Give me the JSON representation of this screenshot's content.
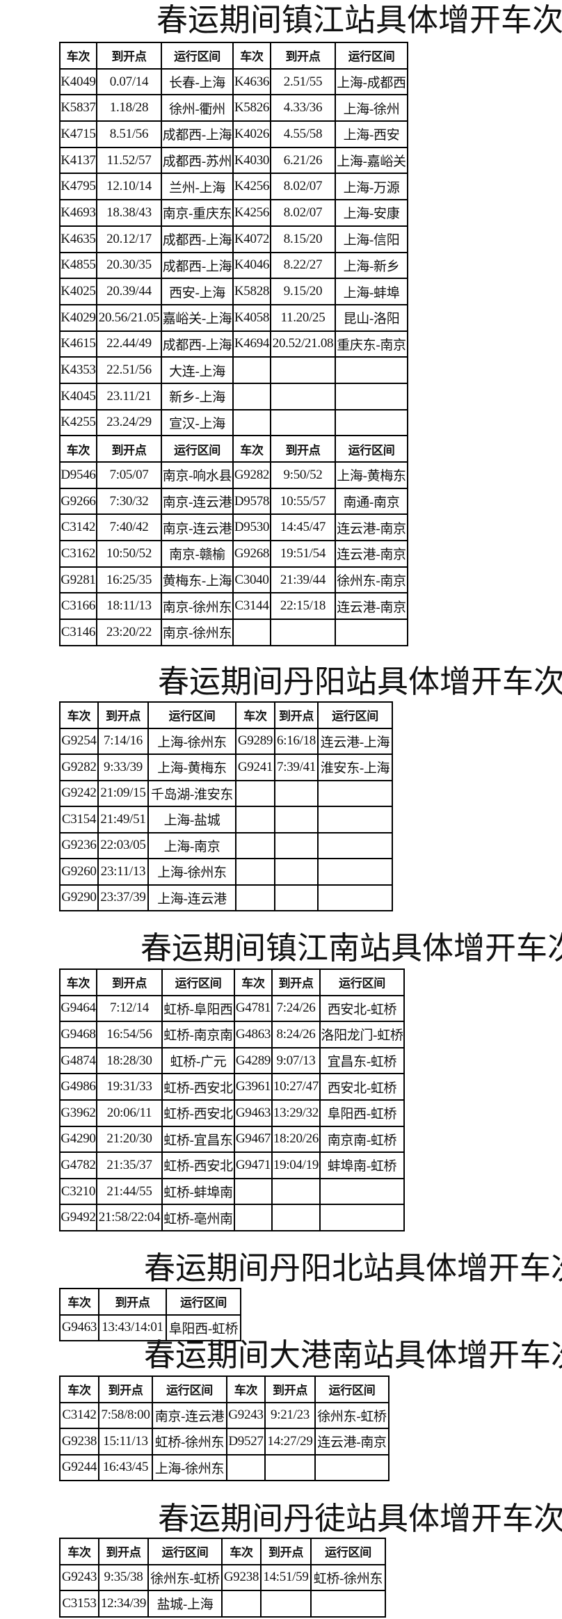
{
  "sections": [
    {
      "title": "春运期间镇江站具体增开车次",
      "blocks": [
        {
          "headers": [
            "车次",
            "到开点",
            "运行区间",
            "车次",
            "到开点",
            "运行区间"
          ],
          "rows": [
            [
              "K4049",
              "0.07/14",
              "长春-上海",
              "K4636",
              "2.51/55",
              "上海-成都西"
            ],
            [
              "K5837",
              "1.18/28",
              "徐州-衢州",
              "K5826",
              "4.33/36",
              "上海-徐州"
            ],
            [
              "K4715",
              "8.51/56",
              "成都西-上海",
              "K4026",
              "4.55/58",
              "上海-西安"
            ],
            [
              "K4137",
              "11.52/57",
              "成都西-苏州",
              "K4030",
              "6.21/26",
              "上海-嘉峪关"
            ],
            [
              "K4795",
              "12.10/14",
              "兰州-上海",
              "K4256",
              "8.02/07",
              "上海-万源"
            ],
            [
              "K4693",
              "18.38/43",
              "南京-重庆东",
              "K4256",
              "8.02/07",
              "上海-安康"
            ],
            [
              "K4635",
              "20.12/17",
              "成都西-上海",
              "K4072",
              "8.15/20",
              "上海-信阳"
            ],
            [
              "K4855",
              "20.30/35",
              "成都西-上海",
              "K4046",
              "8.22/27",
              "上海-新乡"
            ],
            [
              "K4025",
              "20.39/44",
              "西安-上海",
              "K5828",
              "9.15/20",
              "上海-蚌埠"
            ],
            [
              "K4029",
              "20.56/21.05",
              "嘉峪关-上海",
              "K4058",
              "11.20/25",
              "昆山-洛阳"
            ],
            [
              "K4615",
              "22.44/49",
              "成都西-上海",
              "K4694",
              "20.52/21.08",
              "重庆东-南京"
            ],
            [
              "K4353",
              "22.51/56",
              "大连-上海",
              "",
              "",
              ""
            ],
            [
              "K4045",
              "23.11/21",
              "新乡-上海",
              "",
              "",
              ""
            ],
            [
              "K4255",
              "23.24/29",
              "宣汉-上海",
              "",
              "",
              ""
            ]
          ]
        },
        {
          "headers": [
            "车次",
            "到开点",
            "运行区间",
            "车次",
            "到开点",
            "运行区间"
          ],
          "rows": [
            [
              "D9546",
              "7:05/07",
              "南京-响水县",
              "G9282",
              "9:50/52",
              "上海-黄梅东"
            ],
            [
              "G9266",
              "7:30/32",
              "南京-连云港",
              "D9578",
              "10:55/57",
              "南通-南京"
            ],
            [
              "C3142",
              "7:40/42",
              "南京-连云港",
              "D9530",
              "14:45/47",
              "连云港-南京"
            ],
            [
              "C3162",
              "10:50/52",
              "南京-赣榆",
              "G9268",
              "19:51/54",
              "连云港-南京"
            ],
            [
              "G9281",
              "16:25/35",
              "黄梅东-上海",
              "C3040",
              "21:39/44",
              "徐州东-南京"
            ],
            [
              "C3166",
              "18:11/13",
              "南京-徐州东",
              "C3144",
              "22:15/18",
              "连云港-南京"
            ],
            [
              "C3146",
              "23:20/22",
              "南京-徐州东",
              "",
              "",
              ""
            ]
          ]
        }
      ]
    },
    {
      "title": "春运期间丹阳站具体增开车次",
      "blocks": [
        {
          "headers": [
            "车次",
            "到开点",
            "运行区间",
            "车次",
            "到开点",
            "运行区间"
          ],
          "rows": [
            [
              "G9254",
              "7:14/16",
              "上海-徐州东",
              "G9289",
              "6:16/18",
              "连云港-上海"
            ],
            [
              "G9282",
              "9:33/39",
              "上海-黄梅东",
              "G9241",
              "7:39/41",
              "淮安东-上海"
            ],
            [
              "G9242",
              "21:09/15",
              "千岛湖-淮安东",
              "",
              "",
              ""
            ],
            [
              "C3154",
              "21:49/51",
              "上海-盐城",
              "",
              "",
              ""
            ],
            [
              "G9236",
              "22:03/05",
              "上海-南京",
              "",
              "",
              ""
            ],
            [
              "G9260",
              "23:11/13",
              "上海-徐州东",
              "",
              "",
              ""
            ],
            [
              "G9290",
              "23:37/39",
              "上海-连云港",
              "",
              "",
              ""
            ]
          ]
        }
      ]
    },
    {
      "title": "春运期间镇江南站具体增开车次",
      "blocks": [
        {
          "headers": [
            "车次",
            "到开点",
            "运行区间",
            "车次",
            "到开点",
            "运行区间"
          ],
          "rows": [
            [
              "G9464",
              "7:12/14",
              "虹桥-阜阳西",
              "G4781",
              "7:24/26",
              "西安北-虹桥"
            ],
            [
              "G9468",
              "16:54/56",
              "虹桥-南京南",
              "G4863",
              "8:24/26",
              "洛阳龙门-虹桥"
            ],
            [
              "G4874",
              "18:28/30",
              "虹桥-广元",
              "G4289",
              "9:07/13",
              "宜昌东-虹桥"
            ],
            [
              "G4986",
              "19:31/33",
              "虹桥-西安北",
              "G3961",
              "10:27/47",
              "西安北-虹桥"
            ],
            [
              "G3962",
              "20:06/11",
              "虹桥-西安北",
              "G9463",
              "13:29/32",
              "阜阳西-虹桥"
            ],
            [
              "G4290",
              "21:20/30",
              "虹桥-宜昌东",
              "G9467",
              "18:20/26",
              "南京南-虹桥"
            ],
            [
              "G4782",
              "21:35/37",
              "虹桥-西安北",
              "G9471",
              "19:04/19",
              "蚌埠南-虹桥"
            ],
            [
              "C3210",
              "21:44/55",
              "虹桥-蚌埠南",
              "",
              "",
              ""
            ],
            [
              "G9492",
              "21:58/22:04",
              "虹桥-亳州南",
              "",
              "",
              ""
            ]
          ]
        }
      ]
    },
    {
      "title": "春运期间丹阳北站具体增开车次",
      "blocks": [
        {
          "headers": [
            "车次",
            "到开点",
            "运行区间"
          ],
          "rows": [
            [
              "G9463",
              "13:43/14:01",
              "阜阳西-虹桥"
            ]
          ]
        }
      ]
    },
    {
      "title": "春运期间大港南站具体增开车次",
      "blocks": [
        {
          "headers": [
            "车次",
            "到开点",
            "运行区间",
            "车次",
            "到开点",
            "运行区间"
          ],
          "rows": [
            [
              "C3142",
              "7:58/8:00",
              "南京-连云港",
              "G9243",
              "9:21/23",
              "徐州东-虹桥"
            ],
            [
              "G9238",
              "15:11/13",
              "虹桥-徐州东",
              "D9527",
              "14:27/29",
              "连云港-南京"
            ],
            [
              "G9244",
              "16:43/45",
              "上海-徐州东",
              "",
              "",
              ""
            ]
          ]
        }
      ]
    },
    {
      "title": "春运期间丹徒站具体增开车次",
      "blocks": [
        {
          "headers": [
            "车次",
            "到开点",
            "运行区间",
            "车次",
            "到开点",
            "运行区间"
          ],
          "rows": [
            [
              "G9243",
              "9:35/38",
              "徐州东-虹桥",
              "G9238",
              "14:51/59",
              "虹桥-徐州东"
            ],
            [
              "C3153",
              "12:34/39",
              "盐城-上海",
              "",
              "",
              ""
            ]
          ]
        }
      ]
    }
  ]
}
